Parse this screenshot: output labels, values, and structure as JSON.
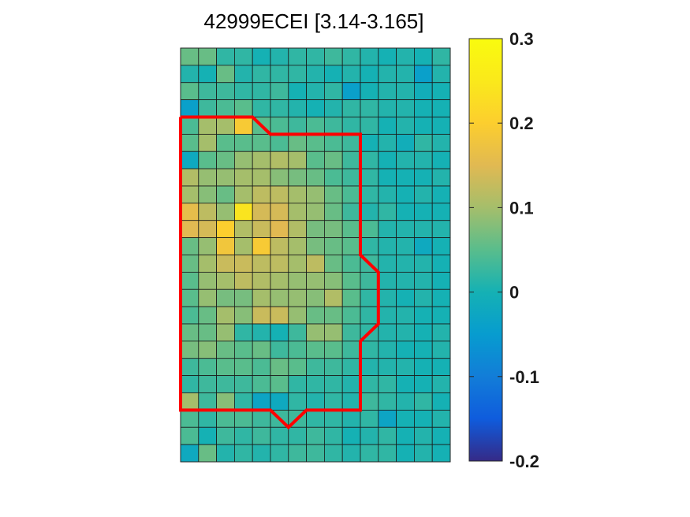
{
  "chart_data": {
    "type": "heatmap",
    "title": "42999ECEI [3.14-3.165]",
    "rows": 24,
    "cols": 15,
    "values": [
      [
        0.06,
        0.06,
        0.02,
        0.02,
        0.0,
        0.01,
        0.02,
        0.02,
        0.03,
        0.02,
        0.01,
        0.0,
        0.01,
        0.0,
        0.02
      ],
      [
        0.01,
        0.0,
        0.06,
        0.01,
        0.02,
        0.02,
        0.02,
        0.01,
        0.0,
        0.01,
        0.0,
        0.01,
        0.01,
        -0.04,
        0.01
      ],
      [
        0.05,
        0.03,
        0.03,
        0.02,
        0.02,
        0.03,
        0.0,
        0.01,
        0.02,
        -0.04,
        0.0,
        0.01,
        0.01,
        -0.01,
        0.0
      ],
      [
        -0.04,
        0.03,
        0.04,
        0.05,
        0.02,
        0.02,
        0.01,
        0.0,
        0.01,
        0.02,
        0.02,
        0.01,
        0.01,
        0.0,
        0.0
      ],
      [
        0.04,
        0.1,
        0.1,
        0.19,
        0.05,
        0.04,
        0.03,
        0.04,
        0.03,
        0.02,
        0.02,
        0.0,
        0.01,
        0.0,
        0.0
      ],
      [
        0.05,
        0.1,
        0.05,
        0.05,
        0.05,
        0.04,
        0.06,
        0.05,
        0.04,
        0.03,
        0.0,
        0.01,
        -0.01,
        0.02,
        0.01
      ],
      [
        -0.02,
        0.05,
        0.06,
        0.09,
        0.1,
        0.11,
        0.1,
        0.05,
        0.06,
        0.03,
        0.02,
        0.0,
        0.01,
        0.01,
        0.0
      ],
      [
        0.11,
        0.09,
        0.09,
        0.1,
        0.1,
        0.08,
        0.07,
        0.06,
        0.04,
        0.03,
        0.02,
        0.0,
        0.0,
        0.0,
        0.01
      ],
      [
        0.1,
        0.08,
        0.06,
        0.1,
        0.12,
        0.12,
        0.1,
        0.09,
        0.06,
        0.04,
        0.02,
        0.01,
        0.0,
        0.01,
        0.0
      ],
      [
        0.16,
        0.12,
        0.09,
        0.24,
        0.14,
        0.14,
        0.1,
        0.09,
        0.06,
        0.03,
        0.01,
        0.02,
        0.0,
        0.0,
        0.0
      ],
      [
        0.15,
        0.14,
        0.2,
        0.11,
        0.13,
        0.15,
        0.11,
        0.07,
        0.07,
        0.05,
        0.04,
        0.01,
        0.01,
        0.01,
        0.01
      ],
      [
        0.06,
        0.09,
        0.18,
        0.1,
        0.19,
        0.12,
        0.1,
        0.07,
        0.06,
        0.05,
        0.02,
        0.01,
        0.01,
        -0.02,
        0.0
      ],
      [
        0.06,
        0.1,
        0.13,
        0.13,
        0.12,
        0.12,
        0.1,
        0.12,
        0.06,
        0.04,
        0.03,
        0.01,
        0.01,
        0.01,
        0.0
      ],
      [
        0.05,
        0.09,
        0.1,
        0.12,
        0.11,
        0.1,
        0.09,
        0.09,
        0.08,
        0.05,
        0.03,
        0.01,
        0.01,
        0.01,
        0.0
      ],
      [
        0.05,
        0.09,
        0.07,
        0.07,
        0.1,
        0.09,
        0.09,
        0.08,
        0.11,
        0.05,
        0.02,
        0.01,
        0.0,
        0.01,
        0.0
      ],
      [
        0.04,
        0.06,
        0.1,
        0.08,
        0.13,
        0.13,
        0.09,
        0.06,
        0.06,
        0.04,
        0.02,
        0.01,
        0.01,
        0.0,
        0.0
      ],
      [
        0.06,
        0.06,
        0.09,
        0.02,
        0.01,
        0.0,
        0.03,
        0.09,
        0.09,
        0.03,
        0.02,
        0.01,
        0.01,
        0.0,
        0.01
      ],
      [
        0.07,
        0.08,
        0.06,
        0.05,
        0.06,
        0.03,
        0.04,
        0.05,
        0.05,
        0.03,
        0.02,
        0.01,
        0.0,
        0.0,
        0.01
      ],
      [
        0.03,
        0.04,
        0.05,
        0.05,
        0.04,
        0.06,
        0.05,
        0.03,
        0.03,
        0.02,
        0.01,
        0.01,
        0.01,
        0.0,
        0.0
      ],
      [
        0.02,
        0.03,
        0.03,
        0.03,
        0.04,
        0.05,
        0.02,
        0.02,
        0.02,
        0.01,
        0.02,
        0.02,
        0.0,
        0.0,
        0.01
      ],
      [
        0.1,
        0.03,
        0.08,
        0.02,
        -0.03,
        -0.02,
        0.02,
        0.01,
        0.02,
        0.01,
        0.03,
        0.02,
        0.01,
        0.02,
        0.0
      ],
      [
        0.04,
        0.02,
        0.04,
        0.04,
        0.03,
        0.03,
        0.03,
        0.02,
        0.02,
        0.01,
        0.02,
        -0.03,
        0.0,
        0.0,
        0.01
      ],
      [
        0.04,
        0.0,
        0.03,
        0.02,
        0.03,
        0.02,
        0.02,
        0.03,
        0.02,
        0.0,
        0.01,
        0.02,
        0.0,
        0.01,
        0.0
      ],
      [
        -0.02,
        0.06,
        0.01,
        0.02,
        0.01,
        0.02,
        0.03,
        0.03,
        0.02,
        0.01,
        0.02,
        0.02,
        0.0,
        0.01,
        0.0
      ]
    ],
    "colorbar": {
      "range": [
        -0.2,
        0.3
      ],
      "ticks": [
        0.3,
        0.2,
        0.1,
        0,
        -0.1,
        -0.2
      ],
      "tick_labels": [
        "0.3",
        "0.2",
        "0.1",
        "0",
        "-0.1",
        "-0.2"
      ],
      "colormap": "parula"
    },
    "outline": {
      "color": "#ff0000",
      "vertices": [
        [
          0,
          4
        ],
        [
          4,
          4
        ],
        [
          5,
          5
        ],
        [
          10,
          5
        ],
        [
          10,
          12
        ],
        [
          11,
          13
        ],
        [
          11,
          16
        ],
        [
          10,
          17
        ],
        [
          10,
          21
        ],
        [
          7,
          21
        ],
        [
          6,
          22
        ],
        [
          5,
          21
        ],
        [
          0,
          21
        ],
        [
          0,
          4
        ]
      ]
    }
  }
}
